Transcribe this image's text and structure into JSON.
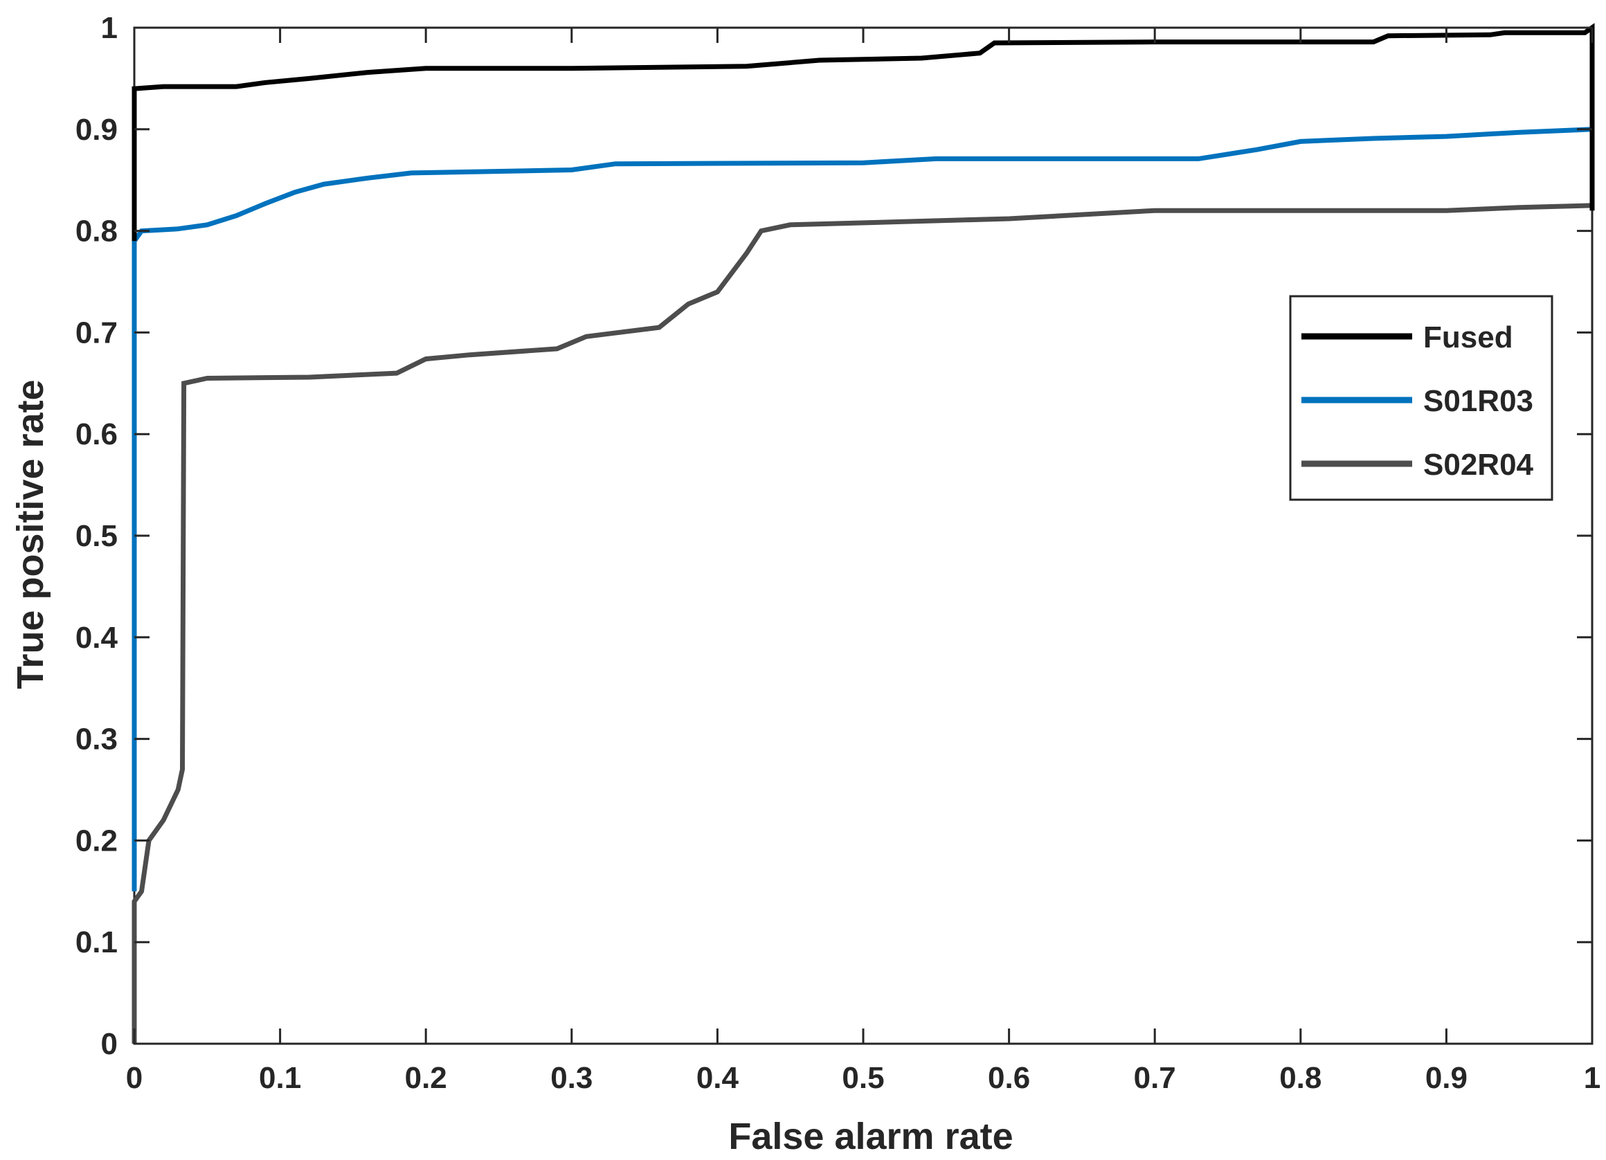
{
  "chart_data": {
    "type": "line",
    "xlabel": "False alarm rate",
    "ylabel": "True positive rate",
    "xlim": [
      0,
      1
    ],
    "ylim": [
      0,
      1
    ],
    "xticks": [
      "0",
      "0.1",
      "0.2",
      "0.3",
      "0.4",
      "0.5",
      "0.6",
      "0.7",
      "0.8",
      "0.9",
      "1"
    ],
    "yticks": [
      "0",
      "0.1",
      "0.2",
      "0.3",
      "0.4",
      "0.5",
      "0.6",
      "0.7",
      "0.8",
      "0.9",
      "1"
    ],
    "grid": false,
    "legend_position": "right",
    "series": [
      {
        "name": "Fused",
        "color": "#000000",
        "points": [
          [
            0,
            0.79
          ],
          [
            0,
            0.94
          ],
          [
            0.02,
            0.942
          ],
          [
            0.07,
            0.942
          ],
          [
            0.09,
            0.946
          ],
          [
            0.12,
            0.95
          ],
          [
            0.16,
            0.956
          ],
          [
            0.2,
            0.96
          ],
          [
            0.3,
            0.96
          ],
          [
            0.42,
            0.962
          ],
          [
            0.47,
            0.968
          ],
          [
            0.54,
            0.97
          ],
          [
            0.58,
            0.975
          ],
          [
            0.59,
            0.985
          ],
          [
            0.7,
            0.986
          ],
          [
            0.85,
            0.986
          ],
          [
            0.86,
            0.992
          ],
          [
            0.93,
            0.993
          ],
          [
            0.94,
            0.995
          ],
          [
            0.995,
            0.995
          ],
          [
            1,
            1
          ],
          [
            1,
            0.82
          ]
        ]
      },
      {
        "name": "S01R03",
        "color": "#0072BD",
        "points": [
          [
            0,
            0.15
          ],
          [
            0,
            0.79
          ],
          [
            0.005,
            0.8
          ],
          [
            0.03,
            0.802
          ],
          [
            0.05,
            0.806
          ],
          [
            0.07,
            0.815
          ],
          [
            0.09,
            0.827
          ],
          [
            0.11,
            0.838
          ],
          [
            0.13,
            0.846
          ],
          [
            0.16,
            0.852
          ],
          [
            0.19,
            0.857
          ],
          [
            0.3,
            0.86
          ],
          [
            0.33,
            0.866
          ],
          [
            0.5,
            0.867
          ],
          [
            0.55,
            0.871
          ],
          [
            0.73,
            0.871
          ],
          [
            0.77,
            0.88
          ],
          [
            0.8,
            0.888
          ],
          [
            0.85,
            0.891
          ],
          [
            0.9,
            0.893
          ],
          [
            0.95,
            0.897
          ],
          [
            1,
            0.9
          ]
        ]
      },
      {
        "name": "S02R04",
        "color": "#4D4D4D",
        "points": [
          [
            0,
            0
          ],
          [
            0,
            0.14
          ],
          [
            0.005,
            0.15
          ],
          [
            0.01,
            0.2
          ],
          [
            0.02,
            0.22
          ],
          [
            0.03,
            0.25
          ],
          [
            0.033,
            0.27
          ],
          [
            0.034,
            0.65
          ],
          [
            0.05,
            0.655
          ],
          [
            0.12,
            0.656
          ],
          [
            0.18,
            0.66
          ],
          [
            0.2,
            0.674
          ],
          [
            0.23,
            0.678
          ],
          [
            0.29,
            0.684
          ],
          [
            0.31,
            0.696
          ],
          [
            0.36,
            0.705
          ],
          [
            0.38,
            0.728
          ],
          [
            0.4,
            0.74
          ],
          [
            0.42,
            0.778
          ],
          [
            0.43,
            0.8
          ],
          [
            0.45,
            0.806
          ],
          [
            0.6,
            0.812
          ],
          [
            0.7,
            0.82
          ],
          [
            0.9,
            0.82
          ],
          [
            0.95,
            0.823
          ],
          [
            1,
            0.825
          ],
          [
            1,
            0.83
          ]
        ]
      }
    ]
  }
}
